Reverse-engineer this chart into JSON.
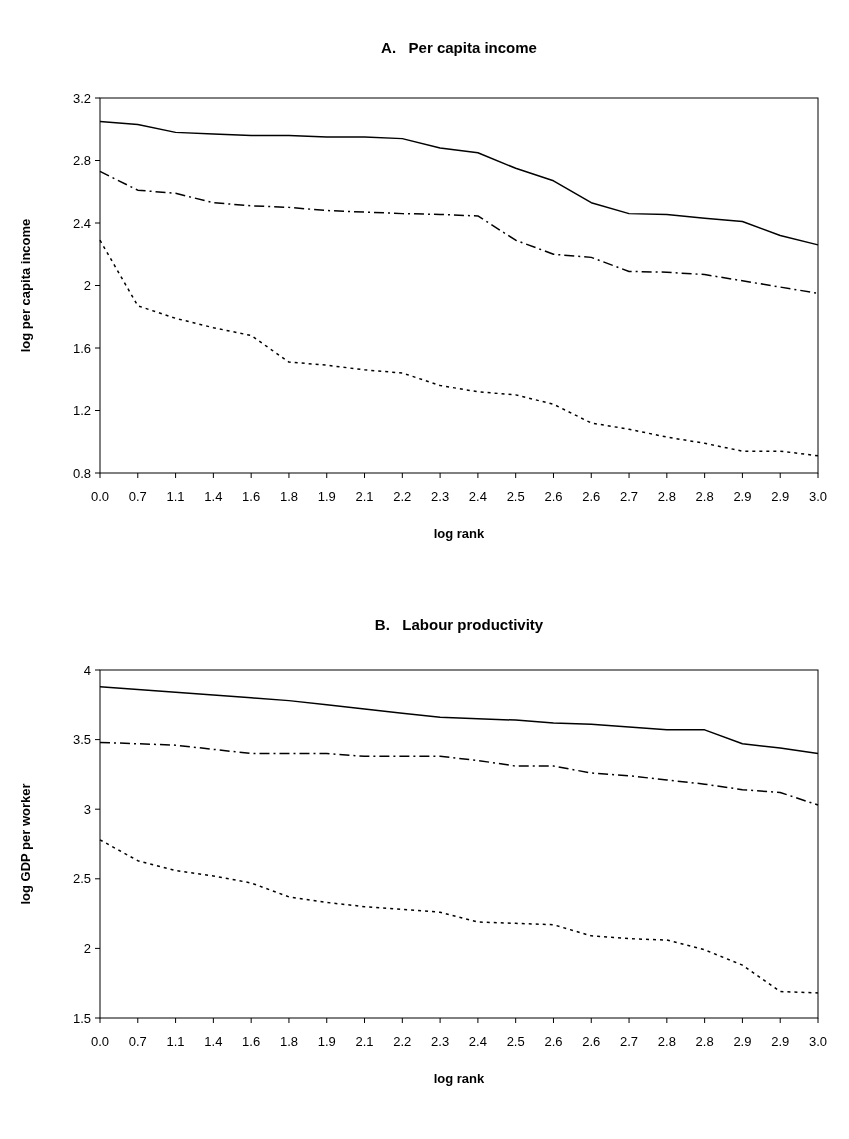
{
  "chart_data": [
    {
      "type": "line",
      "title": "A.   Per capita income",
      "xlabel": "log rank",
      "ylabel": "log per capita income",
      "categories": [
        "0.0",
        "0.7",
        "1.1",
        "1.4",
        "1.6",
        "1.8",
        "1.9",
        "2.1",
        "2.2",
        "2.3",
        "2.4",
        "2.5",
        "2.6",
        "2.6",
        "2.7",
        "2.8",
        "2.8",
        "2.9",
        "2.9",
        "3.0"
      ],
      "series": [
        {
          "color": "#000000",
          "line_style": "solid",
          "values": [
            3.05,
            3.03,
            2.98,
            2.97,
            2.96,
            2.96,
            2.95,
            2.95,
            2.94,
            2.88,
            2.85,
            2.75,
            2.67,
            2.53,
            2.46,
            2.455,
            2.43,
            2.41,
            2.32,
            2.26
          ]
        },
        {
          "color": "#000000",
          "line_style": "dashdot",
          "values": [
            2.73,
            2.61,
            2.59,
            2.53,
            2.51,
            2.5,
            2.48,
            2.47,
            2.46,
            2.455,
            2.445,
            2.29,
            2.2,
            2.18,
            2.09,
            2.085,
            2.07,
            2.03,
            1.99,
            1.95
          ]
        },
        {
          "color": "#000000",
          "line_style": "dotted",
          "values": [
            2.29,
            1.87,
            1.79,
            1.73,
            1.68,
            1.51,
            1.49,
            1.46,
            1.44,
            1.36,
            1.32,
            1.3,
            1.24,
            1.12,
            1.08,
            1.03,
            0.99,
            0.94,
            0.94,
            0.91
          ]
        }
      ],
      "ylim": [
        0.8,
        3.2
      ],
      "yticks": [
        {
          "value": 0.8,
          "label": "0.8"
        },
        {
          "value": 1.2,
          "label": "1.2"
        },
        {
          "value": 1.6,
          "label": "1.6"
        },
        {
          "value": 2,
          "label": "2"
        },
        {
          "value": 2.4,
          "label": "2.4"
        },
        {
          "value": 2.8,
          "label": "2.8"
        },
        {
          "value": 3.2,
          "label": "3.2"
        }
      ],
      "grid": false
    },
    {
      "type": "line",
      "title": "B.   Labour productivity",
      "xlabel": "log rank",
      "ylabel": "log GDP per worker",
      "categories": [
        "0.0",
        "0.7",
        "1.1",
        "1.4",
        "1.6",
        "1.8",
        "1.9",
        "2.1",
        "2.2",
        "2.3",
        "2.4",
        "2.5",
        "2.6",
        "2.6",
        "2.7",
        "2.8",
        "2.8",
        "2.9",
        "2.9",
        "3.0"
      ],
      "series": [
        {
          "color": "#000000",
          "line_style": "solid",
          "values": [
            3.88,
            3.86,
            3.84,
            3.82,
            3.8,
            3.78,
            3.75,
            3.72,
            3.69,
            3.66,
            3.65,
            3.64,
            3.62,
            3.61,
            3.59,
            3.57,
            3.57,
            3.47,
            3.44,
            3.4
          ]
        },
        {
          "color": "#000000",
          "line_style": "dashdot",
          "values": [
            3.48,
            3.47,
            3.46,
            3.43,
            3.4,
            3.4,
            3.4,
            3.38,
            3.38,
            3.38,
            3.35,
            3.31,
            3.31,
            3.26,
            3.24,
            3.21,
            3.18,
            3.14,
            3.12,
            3.03
          ]
        },
        {
          "color": "#000000",
          "line_style": "dotted",
          "values": [
            2.78,
            2.63,
            2.56,
            2.52,
            2.47,
            2.37,
            2.33,
            2.3,
            2.28,
            2.26,
            2.19,
            2.18,
            2.17,
            2.09,
            2.07,
            2.06,
            1.99,
            1.88,
            1.69,
            1.68
          ]
        }
      ],
      "ylim": [
        1.5,
        4
      ],
      "yticks": [
        {
          "value": 1.5,
          "label": "1.5"
        },
        2,
        {
          "value": 2.5,
          "label": "2.5"
        },
        3,
        {
          "value": 3.5,
          "label": "3.5"
        },
        4
      ],
      "grid": false
    }
  ]
}
